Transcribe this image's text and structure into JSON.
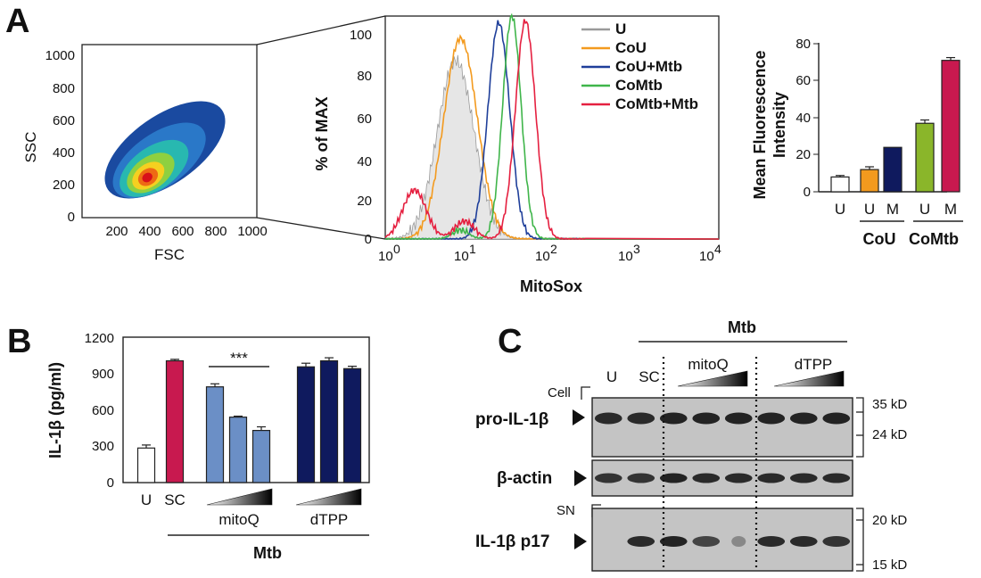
{
  "panel_labels": {
    "a": "A",
    "b": "B",
    "c": "C"
  },
  "scatter": {
    "xlabel": "FSC",
    "ylabel": "SSC",
    "xticks": [
      "200",
      "400",
      "600",
      "800",
      "1000"
    ],
    "yticks": [
      "0",
      "200",
      "400",
      "600",
      "800",
      "1000"
    ]
  },
  "histogram": {
    "ylabel": "% of MAX",
    "xlabel": "MitoSox",
    "yticks": [
      "0",
      "20",
      "40",
      "60",
      "80",
      "100"
    ],
    "xtick_base": "10",
    "xtick_exps": [
      "0",
      "1",
      "2",
      "3",
      "4"
    ],
    "legend": [
      {
        "name": "U",
        "color": "#9a9a9a"
      },
      {
        "name": "CoU",
        "color": "#f39a1e"
      },
      {
        "name": "CoU+Mtb",
        "color": "#1f3f9a"
      },
      {
        "name": "CoMtb",
        "color": "#3fb54a"
      },
      {
        "name": "CoMtb+Mtb",
        "color": "#e52040"
      }
    ]
  },
  "mfi": {
    "ylabel_line1": "Mean Fluorescence",
    "ylabel_line2": "Intensity",
    "yticks": [
      "0",
      "20",
      "40",
      "60",
      "80"
    ],
    "bar_labels": [
      "U",
      "U",
      "M",
      "U",
      "M"
    ],
    "group_labels": [
      "CoU",
      "CoMtb"
    ]
  },
  "il1b": {
    "ylabel": "IL-1β (pg/ml)",
    "yticks": [
      "0",
      "300",
      "600",
      "900",
      "1200"
    ],
    "significance": "***",
    "xlabels": [
      "U",
      "SC"
    ],
    "inhibitors": [
      "mitoQ",
      "dTPP"
    ],
    "group_label": "Mtb"
  },
  "western": {
    "group_label": "Mtb",
    "lane_labels": [
      "U",
      "SC"
    ],
    "inhibitors": [
      "mitoQ",
      "dTPP"
    ],
    "cell_label": "Cell",
    "sn_label": "SN",
    "bands": [
      "pro-IL-1β",
      "β-actin",
      "IL-1β p17"
    ],
    "mw_top": [
      "35 kD",
      "24 kD"
    ],
    "mw_bottom": [
      "20 kD",
      "15 kD"
    ]
  },
  "chart_data": [
    {
      "type": "scatter",
      "title": "",
      "xlabel": "FSC",
      "ylabel": "SSC",
      "xlim": [
        0,
        1000
      ],
      "ylim": [
        0,
        1000
      ],
      "description_values": {
        "density_center": [
          450,
          300
        ]
      }
    },
    {
      "type": "line",
      "title": "",
      "xlabel": "MitoSox",
      "ylabel": "% of MAX",
      "xscale": "log",
      "xlim": [
        1,
        10000
      ],
      "ylim": [
        0,
        100
      ],
      "series": [
        {
          "name": "U",
          "peak_x": 7,
          "peak_y": 80
        },
        {
          "name": "CoU",
          "peak_x": 8,
          "peak_y": 90
        },
        {
          "name": "CoU+Mtb",
          "peak_x": 23,
          "peak_y": 97
        },
        {
          "name": "CoMtb",
          "peak_x": 33,
          "peak_y": 100
        },
        {
          "name": "CoMtb+Mtb",
          "peak_x": 48,
          "peak_y": 98
        }
      ],
      "legend": "top-right"
    },
    {
      "type": "bar",
      "title": "",
      "xlabel": "",
      "ylabel": "Mean Fluorescence Intensity",
      "categories": [
        "U",
        "CoU U",
        "CoU M",
        "CoMtb U",
        "CoMtb M"
      ],
      "values": [
        8,
        12,
        24,
        37,
        71
      ],
      "errors": [
        0.8,
        1.5,
        0,
        1.8,
        1.5
      ],
      "colors": [
        "#ffffff",
        "#f39a1e",
        "#0f1a5e",
        "#8ab62a",
        "#c8194f"
      ],
      "ylim": [
        0,
        80
      ]
    },
    {
      "type": "bar",
      "title": "",
      "xlabel": "",
      "ylabel": "IL-1β (pg/ml)",
      "categories": [
        "U",
        "SC",
        "mitoQ low",
        "mitoQ mid",
        "mitoQ high",
        "dTPP low",
        "dTPP mid",
        "dTPP high"
      ],
      "values": [
        285,
        1005,
        790,
        540,
        430,
        955,
        1005,
        940
      ],
      "errors": [
        25,
        12,
        25,
        8,
        30,
        30,
        25,
        20
      ],
      "colors": [
        "#ffffff",
        "#c8194f",
        "#6b8fc6",
        "#6b8fc6",
        "#6b8fc6",
        "#0f1a5e",
        "#0f1a5e",
        "#0f1a5e"
      ],
      "ylim": [
        0,
        1200
      ]
    }
  ]
}
